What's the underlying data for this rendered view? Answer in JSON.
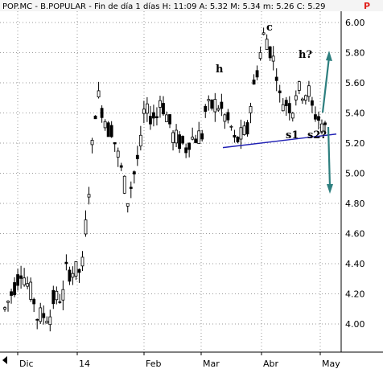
{
  "header": {
    "title": "POP.MC - B.POPULAR - Fin de día 1 días  H: 11:09  A: 5.32  M: 5.34  m: 5.26  C: 5.29",
    "badge": "P"
  },
  "chart_data": {
    "type": "candlestick",
    "ylim": [
      3.8,
      6.1
    ],
    "y_ticks": [
      "6.00",
      "5.80",
      "5.60",
      "5.40",
      "5.20",
      "5.00",
      "4.80",
      "4.60",
      "4.40",
      "4.20",
      "4.00"
    ],
    "x_ticks": [
      "Dic",
      "14",
      "Feb",
      "Mar",
      "Abr",
      "May"
    ],
    "annotations": [
      "h",
      "c",
      "h?",
      "s1",
      "s2?"
    ],
    "neckline": {
      "from": [
        5.17
      ],
      "to": [
        5.26
      ]
    },
    "colors": {
      "candle": "#000000",
      "neckline": "#1f1fb4",
      "arrow": "#2e7f7f",
      "grid": "#9a9a9a"
    },
    "series_profile": [
      [
        4.1,
        4.3
      ],
      [
        4.38,
        4.22
      ],
      [
        4.05,
        3.97
      ],
      [
        4.15,
        4.05
      ],
      [
        4.35,
        4.42
      ],
      [
        4.28,
        5.45
      ],
      [
        5.55,
        5.15
      ],
      [
        5.3,
        4.92
      ],
      [
        4.8,
        5.05
      ],
      [
        5.4,
        5.2
      ],
      [
        5.55,
        5.3
      ],
      [
        5.25,
        5.1
      ],
      [
        5.22,
        5.12
      ],
      [
        5.4,
        5.5
      ],
      [
        5.45,
        5.35
      ],
      [
        5.2,
        5.18
      ],
      [
        5.4,
        5.9
      ],
      [
        5.95,
        5.75
      ],
      [
        5.5,
        5.3
      ],
      [
        5.55,
        5.62
      ],
      [
        5.45,
        5.3
      ],
      [
        5.29,
        5.29
      ]
    ]
  }
}
